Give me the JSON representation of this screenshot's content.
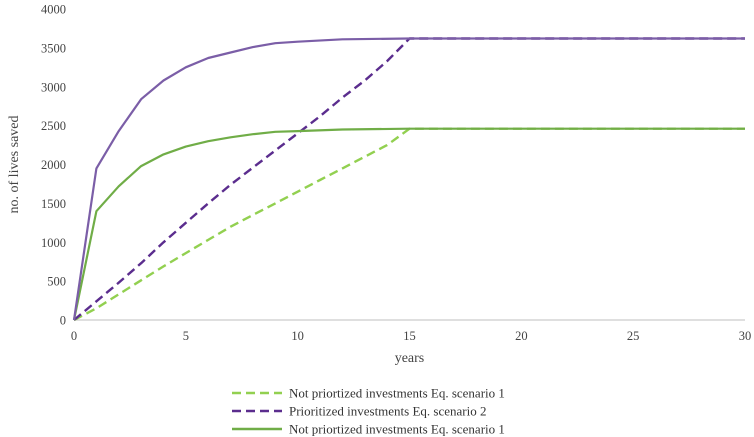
{
  "chart_data": {
    "type": "line",
    "title": "",
    "xlabel": "years",
    "ylabel": "no. of  lives saved",
    "xlim": [
      0,
      30
    ],
    "ylim": [
      0,
      4000
    ],
    "xticks": [
      0,
      5,
      10,
      15,
      20,
      25,
      30
    ],
    "yticks": [
      0,
      500,
      1000,
      1500,
      2000,
      2500,
      3000,
      3500,
      4000
    ],
    "grid": false,
    "legend_position": "bottom",
    "series": [
      {
        "name": "Not priortized investments Eq. scenario 1",
        "color": "#92d050",
        "dash": true,
        "x": [
          0,
          1,
          2,
          3,
          4,
          5,
          6,
          7,
          8,
          9,
          10,
          11,
          12,
          13,
          14,
          15,
          30
        ],
        "y": [
          0,
          150,
          330,
          510,
          690,
          860,
          1030,
          1200,
          1350,
          1500,
          1650,
          1800,
          1950,
          2100,
          2250,
          2460,
          2460
        ]
      },
      {
        "name": "Prioritized investments Eq. scenario 2",
        "color": "#5b2d8e",
        "dash": true,
        "x": [
          0,
          1,
          2,
          3,
          4,
          5,
          6,
          7,
          8,
          9,
          10,
          11,
          12,
          13,
          14,
          15,
          30
        ],
        "y": [
          0,
          240,
          480,
          730,
          1000,
          1250,
          1500,
          1740,
          1960,
          2180,
          2400,
          2620,
          2860,
          3080,
          3330,
          3620,
          3620
        ]
      },
      {
        "name": "Not priortized investments Eq. scenario 1",
        "color": "#70ad47",
        "dash": false,
        "x": [
          0,
          1,
          2,
          3,
          4,
          5,
          6,
          7,
          8,
          9,
          10,
          12,
          15,
          30
        ],
        "y": [
          0,
          1400,
          1720,
          1980,
          2130,
          2230,
          2300,
          2350,
          2390,
          2420,
          2430,
          2450,
          2460,
          2460
        ]
      },
      {
        "name": "",
        "color": "#7b5ea7",
        "dash": false,
        "x": [
          0,
          1,
          2,
          3,
          4,
          5,
          6,
          7,
          8,
          9,
          10,
          12,
          15,
          30
        ],
        "y": [
          0,
          1950,
          2430,
          2840,
          3080,
          3250,
          3370,
          3440,
          3510,
          3560,
          3580,
          3610,
          3620,
          3620
        ]
      }
    ]
  }
}
